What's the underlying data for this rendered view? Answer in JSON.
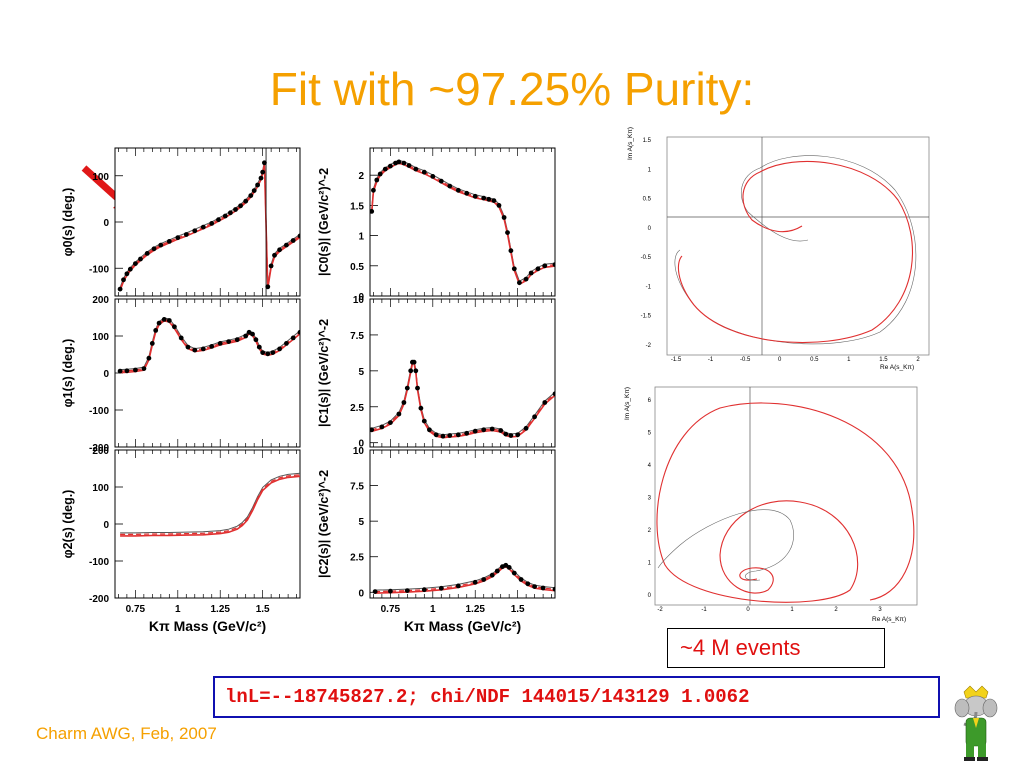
{
  "slide": {
    "title": "Fit with ~97.25% Purity:",
    "events_box": "~4 M events",
    "lnl_text": "lnL=--18745827.2; chi/NDF 144015/143129 1.0062",
    "footer": "Charm AWG, Feb, 2007",
    "colors": {
      "title": "#f5a000",
      "fit": "#e03030",
      "data": "#000000",
      "box_border": "#1010b0",
      "box_text": "#e01010"
    },
    "icons": {
      "arrow": "red-arrow-icon",
      "mascot": "babar-elephant-icon"
    }
  },
  "chart_data": [
    {
      "type": "line",
      "id": "phi0",
      "ylabel": "φ0(s)  (deg.)",
      "xlim": [
        0.63,
        1.72
      ],
      "ylim": [
        -160,
        160
      ],
      "yticks": [
        -100,
        0,
        100
      ],
      "series": [
        {
          "x": [
            0.66,
            0.68,
            0.7,
            0.72,
            0.75,
            0.78,
            0.82,
            0.86,
            0.9,
            0.95,
            1.0,
            1.05,
            1.1,
            1.15,
            1.2,
            1.24,
            1.28,
            1.31,
            1.34,
            1.37,
            1.4,
            1.43,
            1.45,
            1.47,
            1.49,
            1.5,
            1.51,
            1.53,
            1.55,
            1.57,
            1.6,
            1.64,
            1.68,
            1.72
          ],
          "y": [
            -145,
            -125,
            -112,
            -102,
            -90,
            -80,
            -68,
            -58,
            -50,
            -42,
            -34,
            -27,
            -19,
            -11,
            -3,
            5,
            13,
            20,
            27,
            35,
            45,
            57,
            68,
            80,
            95,
            108,
            128,
            -140,
            -95,
            -72,
            -60,
            -50,
            -40,
            -30
          ]
        }
      ]
    },
    {
      "type": "line",
      "id": "c0",
      "ylabel": "|C0(s)|  (GeV/c²)^-2",
      "xlim": [
        0.63,
        1.72
      ],
      "ylim": [
        0,
        2.45
      ],
      "yticks": [
        0,
        0.5,
        1,
        1.5,
        2
      ],
      "series": [
        {
          "x": [
            0.64,
            0.65,
            0.67,
            0.69,
            0.72,
            0.75,
            0.78,
            0.8,
            0.83,
            0.86,
            0.9,
            0.95,
            1.0,
            1.05,
            1.1,
            1.15,
            1.2,
            1.25,
            1.3,
            1.33,
            1.36,
            1.39,
            1.42,
            1.44,
            1.46,
            1.48,
            1.51,
            1.55,
            1.58,
            1.62,
            1.66,
            1.72
          ],
          "y": [
            1.4,
            1.75,
            1.92,
            2.02,
            2.1,
            2.15,
            2.2,
            2.22,
            2.2,
            2.16,
            2.1,
            2.05,
            1.98,
            1.9,
            1.82,
            1.75,
            1.7,
            1.65,
            1.62,
            1.6,
            1.58,
            1.5,
            1.3,
            1.05,
            0.75,
            0.45,
            0.22,
            0.28,
            0.38,
            0.45,
            0.5,
            0.52
          ]
        }
      ]
    },
    {
      "type": "line",
      "id": "phi1",
      "ylabel": "φ1(s)  (deg.)",
      "xlim": [
        0.63,
        1.72
      ],
      "ylim": [
        -200,
        200
      ],
      "yticks": [
        -200,
        -100,
        0,
        100,
        200
      ],
      "series": [
        {
          "x": [
            0.66,
            0.7,
            0.75,
            0.8,
            0.83,
            0.85,
            0.87,
            0.89,
            0.92,
            0.95,
            0.98,
            1.02,
            1.06,
            1.1,
            1.15,
            1.2,
            1.25,
            1.3,
            1.35,
            1.4,
            1.42,
            1.44,
            1.46,
            1.48,
            1.5,
            1.53,
            1.56,
            1.6,
            1.64,
            1.68,
            1.72
          ],
          "y": [
            5,
            6,
            8,
            12,
            40,
            80,
            115,
            135,
            145,
            142,
            125,
            95,
            70,
            62,
            65,
            72,
            80,
            85,
            90,
            100,
            110,
            105,
            90,
            70,
            55,
            52,
            55,
            65,
            80,
            95,
            110
          ]
        }
      ]
    },
    {
      "type": "line",
      "id": "c1",
      "ylabel": "|C1(s)|  (GeV/c²)^-2",
      "xlim": [
        0.63,
        1.72
      ],
      "ylim": [
        -0.3,
        10
      ],
      "yticks": [
        0,
        2.5,
        5,
        7.5,
        10
      ],
      "series": [
        {
          "x": [
            0.64,
            0.7,
            0.75,
            0.8,
            0.83,
            0.85,
            0.87,
            0.88,
            0.89,
            0.9,
            0.91,
            0.93,
            0.95,
            0.98,
            1.02,
            1.06,
            1.1,
            1.15,
            1.2,
            1.25,
            1.3,
            1.35,
            1.4,
            1.43,
            1.46,
            1.5,
            1.55,
            1.6,
            1.66,
            1.72
          ],
          "y": [
            0.9,
            1.1,
            1.4,
            2.0,
            2.8,
            3.8,
            5.0,
            5.6,
            5.6,
            5.0,
            3.8,
            2.4,
            1.5,
            0.9,
            0.55,
            0.45,
            0.5,
            0.55,
            0.65,
            0.8,
            0.9,
            0.95,
            0.85,
            0.6,
            0.5,
            0.55,
            1.0,
            1.8,
            2.8,
            3.4
          ]
        }
      ]
    },
    {
      "type": "line",
      "id": "phi2",
      "ylabel": "φ2(s)  (deg.)",
      "xlabel": "Kπ Mass (GeV/c²)",
      "xlim": [
        0.63,
        1.72
      ],
      "ylim": [
        -200,
        200
      ],
      "xticks": [
        0.75,
        1,
        1.25,
        1.5
      ],
      "yticks": [
        -200,
        -100,
        0,
        100,
        200
      ],
      "series": [
        {
          "x": [
            0.66,
            0.75,
            0.85,
            0.95,
            1.05,
            1.15,
            1.25,
            1.3,
            1.35,
            1.38,
            1.41,
            1.44,
            1.47,
            1.5,
            1.55,
            1.6,
            1.65,
            1.72
          ],
          "y": [
            -28,
            -28,
            -27,
            -27,
            -26,
            -25,
            -22,
            -18,
            -10,
            0,
            15,
            40,
            70,
            95,
            115,
            125,
            130,
            133
          ]
        }
      ]
    },
    {
      "type": "line",
      "id": "c2",
      "ylabel": "|C2(s)|  (GeV/c²)^-2",
      "xlabel": "Kπ Mass (GeV/c²)",
      "xlim": [
        0.63,
        1.72
      ],
      "ylim": [
        -0.4,
        10
      ],
      "xticks": [
        0.75,
        1,
        1.25,
        1.5
      ],
      "yticks": [
        0,
        2.5,
        5,
        7.5,
        10
      ],
      "series": [
        {
          "x": [
            0.66,
            0.75,
            0.85,
            0.95,
            1.05,
            1.15,
            1.25,
            1.3,
            1.35,
            1.38,
            1.41,
            1.43,
            1.45,
            1.48,
            1.52,
            1.56,
            1.6,
            1.65,
            1.72
          ],
          "y": [
            0.05,
            0.08,
            0.12,
            0.18,
            0.28,
            0.45,
            0.7,
            0.9,
            1.2,
            1.5,
            1.8,
            1.9,
            1.75,
            1.35,
            0.9,
            0.6,
            0.4,
            0.3,
            0.22
          ]
        }
      ]
    }
  ],
  "argand_top": {
    "ylabel": "Im A(s_Kπ)",
    "xlabel": "Re A(s_Kπ)",
    "yticks": [
      "1.5",
      "1",
      "0.5",
      "0",
      "-0.5",
      "-1",
      "-1.5",
      "-2"
    ],
    "xticks": [
      "-1.5",
      "-1",
      "-0.5",
      "0",
      "0.5",
      "1",
      "1.5",
      "2"
    ]
  },
  "argand_bottom": {
    "ylabel": "Im A(s_Kπ)",
    "xlabel": "Re A(s_Kπ)",
    "yticks": [
      "6",
      "5",
      "4",
      "3",
      "2",
      "1",
      "0"
    ],
    "xticks": [
      "-2",
      "-1",
      "0",
      "1",
      "2",
      "3"
    ]
  }
}
